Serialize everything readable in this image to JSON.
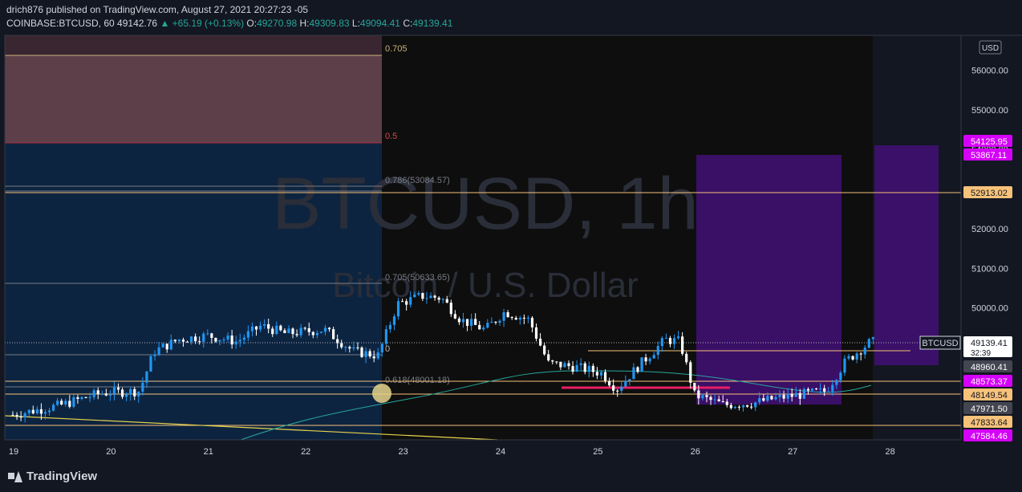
{
  "header": {
    "publish_line": "drich876 published on TradingView.com, August 27, 2021 20:27:23 -05",
    "symbol": "COINBASE:BTCUSD, 60",
    "last": "49142.76",
    "change": "▲ +65.19 (+0.13%)",
    "o_label": "O:",
    "o": "49270.98",
    "h_label": "H:",
    "h": "49309.83",
    "l_label": "L:",
    "l": "49094.41",
    "c_label": "C:",
    "c": "49139.41"
  },
  "watermark": {
    "symbol": "BTCUSD, 1h",
    "description": "Bitcoin / U.S. Dollar"
  },
  "footer": {
    "brand": "TradingView"
  },
  "colors": {
    "bg": "#131722",
    "up": "#2196f3",
    "down": "#ffffff",
    "fib_line": "#787b86",
    "hline": "#f7c27a",
    "purple": "#4a148c",
    "magenta": "#d500f9"
  },
  "chart_data": {
    "type": "candlestick",
    "currency": "USD",
    "y_ticks": [
      "56000.00",
      "55000.00",
      "54000.00",
      "53000.00",
      "52000.00",
      "51000.00",
      "50000.00"
    ],
    "x_ticks": [
      "19",
      "20",
      "21",
      "22",
      "23",
      "24",
      "25",
      "26",
      "27",
      "28"
    ],
    "fib_labels": [
      {
        "text": "0.705",
        "price": 56350
      },
      {
        "text": "0.5",
        "price": 54140
      },
      {
        "text": "0.786(53084.57)",
        "price": 53084.57
      },
      {
        "text": "0.705(50633.65)",
        "price": 50633.65
      },
      {
        "text": "0",
        "price": 49350
      },
      {
        "text": "0.618(48001.18)",
        "price": 48001.18
      }
    ],
    "price_labels": [
      {
        "text": "54125.95",
        "color": "#d500f9",
        "price": 54125.95
      },
      {
        "text": "53867.11",
        "color": "#d500f9",
        "price": 53867.11
      },
      {
        "text": "52913.02",
        "color": "#f7c27a",
        "price": 52913.02
      },
      {
        "text": "49139.41",
        "sub": "32:39",
        "color": "#ffffff",
        "price": 49139.41
      },
      {
        "text": "48960.41",
        "color": "#434651",
        "price": 48960.41
      },
      {
        "text": "48573.37",
        "color": "#d500f9",
        "price": 48573.37
      },
      {
        "text": "48149.54",
        "color": "#f7c27a",
        "price": 48149.54
      },
      {
        "text": "47971.50",
        "color": "#434651",
        "price": 47971.5
      },
      {
        "text": "47833.64",
        "color": "#f7c27a",
        "price": 47833.64
      },
      {
        "text": "47584.46",
        "color": "#d500f9",
        "price": 47584.46
      }
    ],
    "symbol_label": "BTCUSD",
    "ylim": [
      47350,
      57000
    ],
    "xlim_days": [
      18.95,
      28.8
    ],
    "candles_daily_path": [
      {
        "d": 19.0,
        "p": 47300
      },
      {
        "d": 19.5,
        "p": 47550
      },
      {
        "d": 19.9,
        "p": 47850
      },
      {
        "d": 20.3,
        "p": 47900
      },
      {
        "d": 20.45,
        "p": 48900
      },
      {
        "d": 20.7,
        "p": 49200
      },
      {
        "d": 21.0,
        "p": 49300
      },
      {
        "d": 21.3,
        "p": 49150
      },
      {
        "d": 21.55,
        "p": 49550
      },
      {
        "d": 21.8,
        "p": 49350
      },
      {
        "d": 22.2,
        "p": 49450
      },
      {
        "d": 22.5,
        "p": 48900
      },
      {
        "d": 22.75,
        "p": 48800
      },
      {
        "d": 22.95,
        "p": 50100
      },
      {
        "d": 23.2,
        "p": 50300
      },
      {
        "d": 23.4,
        "p": 50250
      },
      {
        "d": 23.6,
        "p": 49700
      },
      {
        "d": 23.85,
        "p": 49450
      },
      {
        "d": 24.05,
        "p": 49900
      },
      {
        "d": 24.3,
        "p": 49700
      },
      {
        "d": 24.5,
        "p": 48600
      },
      {
        "d": 24.8,
        "p": 48500
      },
      {
        "d": 25.05,
        "p": 48350
      },
      {
        "d": 25.2,
        "p": 47950
      },
      {
        "d": 25.45,
        "p": 48600
      },
      {
        "d": 25.7,
        "p": 49200
      },
      {
        "d": 25.85,
        "p": 49150
      },
      {
        "d": 26.0,
        "p": 47800
      },
      {
        "d": 26.3,
        "p": 47550
      },
      {
        "d": 26.6,
        "p": 47600
      },
      {
        "d": 26.8,
        "p": 47700
      },
      {
        "d": 27.05,
        "p": 47800
      },
      {
        "d": 27.35,
        "p": 47900
      },
      {
        "d": 27.55,
        "p": 48650
      },
      {
        "d": 27.8,
        "p": 49130
      },
      {
        "d": 27.85,
        "p": 49140
      }
    ]
  }
}
